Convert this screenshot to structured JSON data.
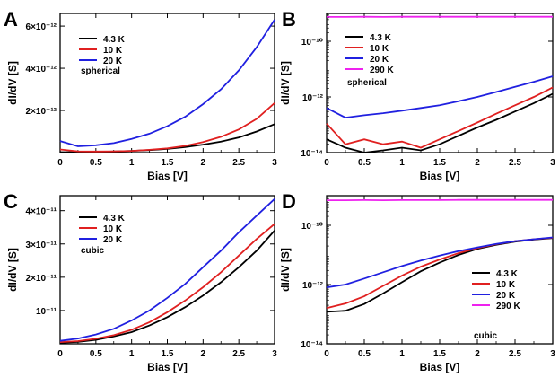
{
  "chart_data": [
    {
      "panel": "A",
      "type": "line",
      "yscale": "linear",
      "xlabel": "Bias [V]",
      "ylabel": "dI/dV [S]",
      "xlim": [
        0,
        3
      ],
      "ylim": [
        0,
        6.6e-12
      ],
      "xticks": [
        0,
        0.5,
        1,
        1.5,
        2,
        2.5,
        3
      ],
      "xtick_labels": [
        "0",
        "0.5",
        "1",
        "1.5",
        "2",
        "2.5",
        "3"
      ],
      "yticks": [
        2e-12,
        4e-12,
        6e-12
      ],
      "ytick_labels": [
        "2×10⁻¹²",
        "4×10⁻¹²",
        "6×10⁻¹²"
      ],
      "annotation": "spherical",
      "x": [
        0,
        0.25,
        0.5,
        0.75,
        1,
        1.25,
        1.5,
        1.75,
        2,
        2.25,
        2.5,
        2.75,
        3
      ],
      "series": [
        {
          "name": "4.3 K",
          "color": "#000000",
          "values": [
            2e-14,
            2e-14,
            3e-14,
            5e-14,
            8e-14,
            1.2e-13,
            1.8e-13,
            2.6e-13,
            3.8e-13,
            5.2e-13,
            7.2e-13,
            1e-12,
            1.35e-12
          ]
        },
        {
          "name": "10 K",
          "color": "#e02020",
          "values": [
            1.5e-13,
            6e-14,
            5e-14,
            6e-14,
            8e-14,
            1.3e-13,
            2e-13,
            3.2e-13,
            5e-13,
            7.5e-13,
            1.1e-12,
            1.6e-12,
            2.35e-12
          ]
        },
        {
          "name": "20 K",
          "color": "#2020e0",
          "values": [
            5.5e-13,
            3e-13,
            3.5e-13,
            4.5e-13,
            6.5e-13,
            9e-13,
            1.25e-12,
            1.7e-12,
            2.3e-12,
            3e-12,
            3.9e-12,
            5e-12,
            6.3e-12
          ]
        }
      ]
    },
    {
      "panel": "B",
      "type": "line",
      "yscale": "log",
      "xlabel": "Bias [V]",
      "ylabel": "dI/dV [S]",
      "xlim": [
        0,
        3
      ],
      "ylim": [
        1e-14,
        1e-09
      ],
      "xticks": [
        0,
        0.5,
        1,
        1.5,
        2,
        2.5,
        3
      ],
      "xtick_labels": [
        "0",
        "0.5",
        "1",
        "1.5",
        "2",
        "2.5",
        "3"
      ],
      "yticks": [
        1e-14,
        1e-12,
        1e-10
      ],
      "ytick_labels": [
        "10⁻¹⁴",
        "10⁻¹²",
        "10⁻¹⁰"
      ],
      "annotation": "spherical",
      "x": [
        0,
        0.25,
        0.5,
        0.75,
        1,
        1.25,
        1.5,
        1.75,
        2,
        2.25,
        2.5,
        2.75,
        3
      ],
      "series": [
        {
          "name": "4.3 K",
          "color": "#000000",
          "values": [
            3e-14,
            1.5e-14,
            1e-14,
            1.2e-14,
            1.5e-14,
            1.2e-14,
            2e-14,
            4e-14,
            8e-14,
            1.5e-13,
            3e-13,
            6e-13,
            1.3e-12
          ]
        },
        {
          "name": "10 K",
          "color": "#e02020",
          "values": [
            1.1e-13,
            2e-14,
            3e-14,
            2e-14,
            2.5e-14,
            1.5e-14,
            3e-14,
            6e-14,
            1.2e-13,
            2.5e-13,
            5e-13,
            1e-12,
            2.2e-12
          ]
        },
        {
          "name": "20 K",
          "color": "#2020e0",
          "values": [
            4e-13,
            1.8e-13,
            2.2e-13,
            2.6e-13,
            3.2e-13,
            4e-13,
            5e-13,
            7e-13,
            1e-12,
            1.5e-12,
            2.3e-12,
            3.5e-12,
            5.5e-12
          ]
        },
        {
          "name": "290 K",
          "color": "#ee22ee",
          "values": [
            7.5e-10,
            7.5e-10,
            7.6e-10,
            7.5e-10,
            7.6e-10,
            7.6e-10,
            7.6e-10,
            7.6e-10,
            7.6e-10,
            7.6e-10,
            7.6e-10,
            7.6e-10,
            7.6e-10
          ]
        }
      ]
    },
    {
      "panel": "C",
      "type": "line",
      "yscale": "linear",
      "xlabel": "Bias [V]",
      "ylabel": "dI/dV [S]",
      "xlim": [
        0,
        3
      ],
      "ylim": [
        0,
        4.45e-11
      ],
      "xticks": [
        0,
        0.5,
        1,
        1.5,
        2,
        2.5,
        3
      ],
      "xtick_labels": [
        "0",
        "0.5",
        "1",
        "1.5",
        "2",
        "2.5",
        "3"
      ],
      "yticks": [
        1e-11,
        2e-11,
        3e-11,
        4e-11
      ],
      "ytick_labels": [
        "10⁻¹¹",
        "2×10⁻¹¹",
        "3×10⁻¹¹",
        "4×10⁻¹¹"
      ],
      "annotation": "cubic",
      "x": [
        0,
        0.25,
        0.5,
        0.75,
        1,
        1.25,
        1.5,
        1.75,
        2,
        2.25,
        2.5,
        2.75,
        3
      ],
      "series": [
        {
          "name": "4.3 K",
          "color": "#000000",
          "values": [
            3e-13,
            6e-13,
            1.2e-12,
            2.2e-12,
            3.5e-12,
            5.5e-12,
            8e-12,
            1.1e-11,
            1.45e-11,
            1.85e-11,
            2.3e-11,
            2.8e-11,
            3.4e-11
          ]
        },
        {
          "name": "10 K",
          "color": "#e02020",
          "values": [
            5e-13,
            8e-13,
            1.5e-12,
            2.6e-12,
            4.2e-12,
            6.5e-12,
            9.5e-12,
            1.3e-11,
            1.7e-11,
            2.15e-11,
            2.65e-11,
            3.15e-11,
            3.6e-11
          ]
        },
        {
          "name": "20 K",
          "color": "#2020e0",
          "values": [
            9e-13,
            1.6e-12,
            2.8e-12,
            4.5e-12,
            7e-12,
            1e-11,
            1.38e-11,
            1.8e-11,
            2.3e-11,
            2.8e-11,
            3.35e-11,
            3.85e-11,
            4.35e-11
          ]
        }
      ]
    },
    {
      "panel": "D",
      "type": "line",
      "yscale": "log",
      "xlabel": "Bias [V]",
      "ylabel": "dI/dV [S]",
      "xlim": [
        0,
        3
      ],
      "ylim": [
        1e-14,
        1e-09
      ],
      "xticks": [
        0,
        0.5,
        1,
        1.5,
        2,
        2.5,
        3
      ],
      "xtick_labels": [
        "0",
        "0.5",
        "1",
        "1.5",
        "2",
        "2.5",
        "3"
      ],
      "yticks": [
        1e-14,
        1e-12,
        1e-10
      ],
      "ytick_labels": [
        "10⁻¹⁴",
        "10⁻¹²",
        "10⁻¹⁰"
      ],
      "annotation": "cubic",
      "x": [
        0,
        0.25,
        0.5,
        0.75,
        1,
        1.25,
        1.5,
        1.75,
        2,
        2.25,
        2.5,
        2.75,
        3
      ],
      "series": [
        {
          "name": "4.3 K",
          "color": "#000000",
          "values": [
            1.2e-13,
            1.3e-13,
            2.2e-13,
            5e-13,
            1.2e-12,
            2.8e-12,
            5.5e-12,
            1e-11,
            1.6e-11,
            2.2e-11,
            2.8e-11,
            3.3e-11,
            3.7e-11
          ]
        },
        {
          "name": "10 K",
          "color": "#e02020",
          "values": [
            1.6e-13,
            2.3e-13,
            4e-13,
            9e-13,
            2e-12,
            4e-12,
            7e-12,
            1.15e-11,
            1.7e-11,
            2.3e-11,
            2.9e-11,
            3.4e-11,
            3.8e-11
          ]
        },
        {
          "name": "20 K",
          "color": "#2020e0",
          "values": [
            8e-13,
            1e-12,
            1.6e-12,
            2.6e-12,
            4.2e-12,
            6.5e-12,
            9.5e-12,
            1.35e-11,
            1.8e-11,
            2.35e-11,
            2.9e-11,
            3.4e-11,
            3.9e-11
          ]
        },
        {
          "name": "290 K",
          "color": "#ee22ee",
          "values": [
            7e-10,
            7e-10,
            7.1e-10,
            7e-10,
            7.1e-10,
            7.1e-10,
            7.1e-10,
            7.2e-10,
            7.2e-10,
            7.2e-10,
            7.2e-10,
            7.2e-10,
            7.2e-10
          ]
        }
      ]
    }
  ]
}
